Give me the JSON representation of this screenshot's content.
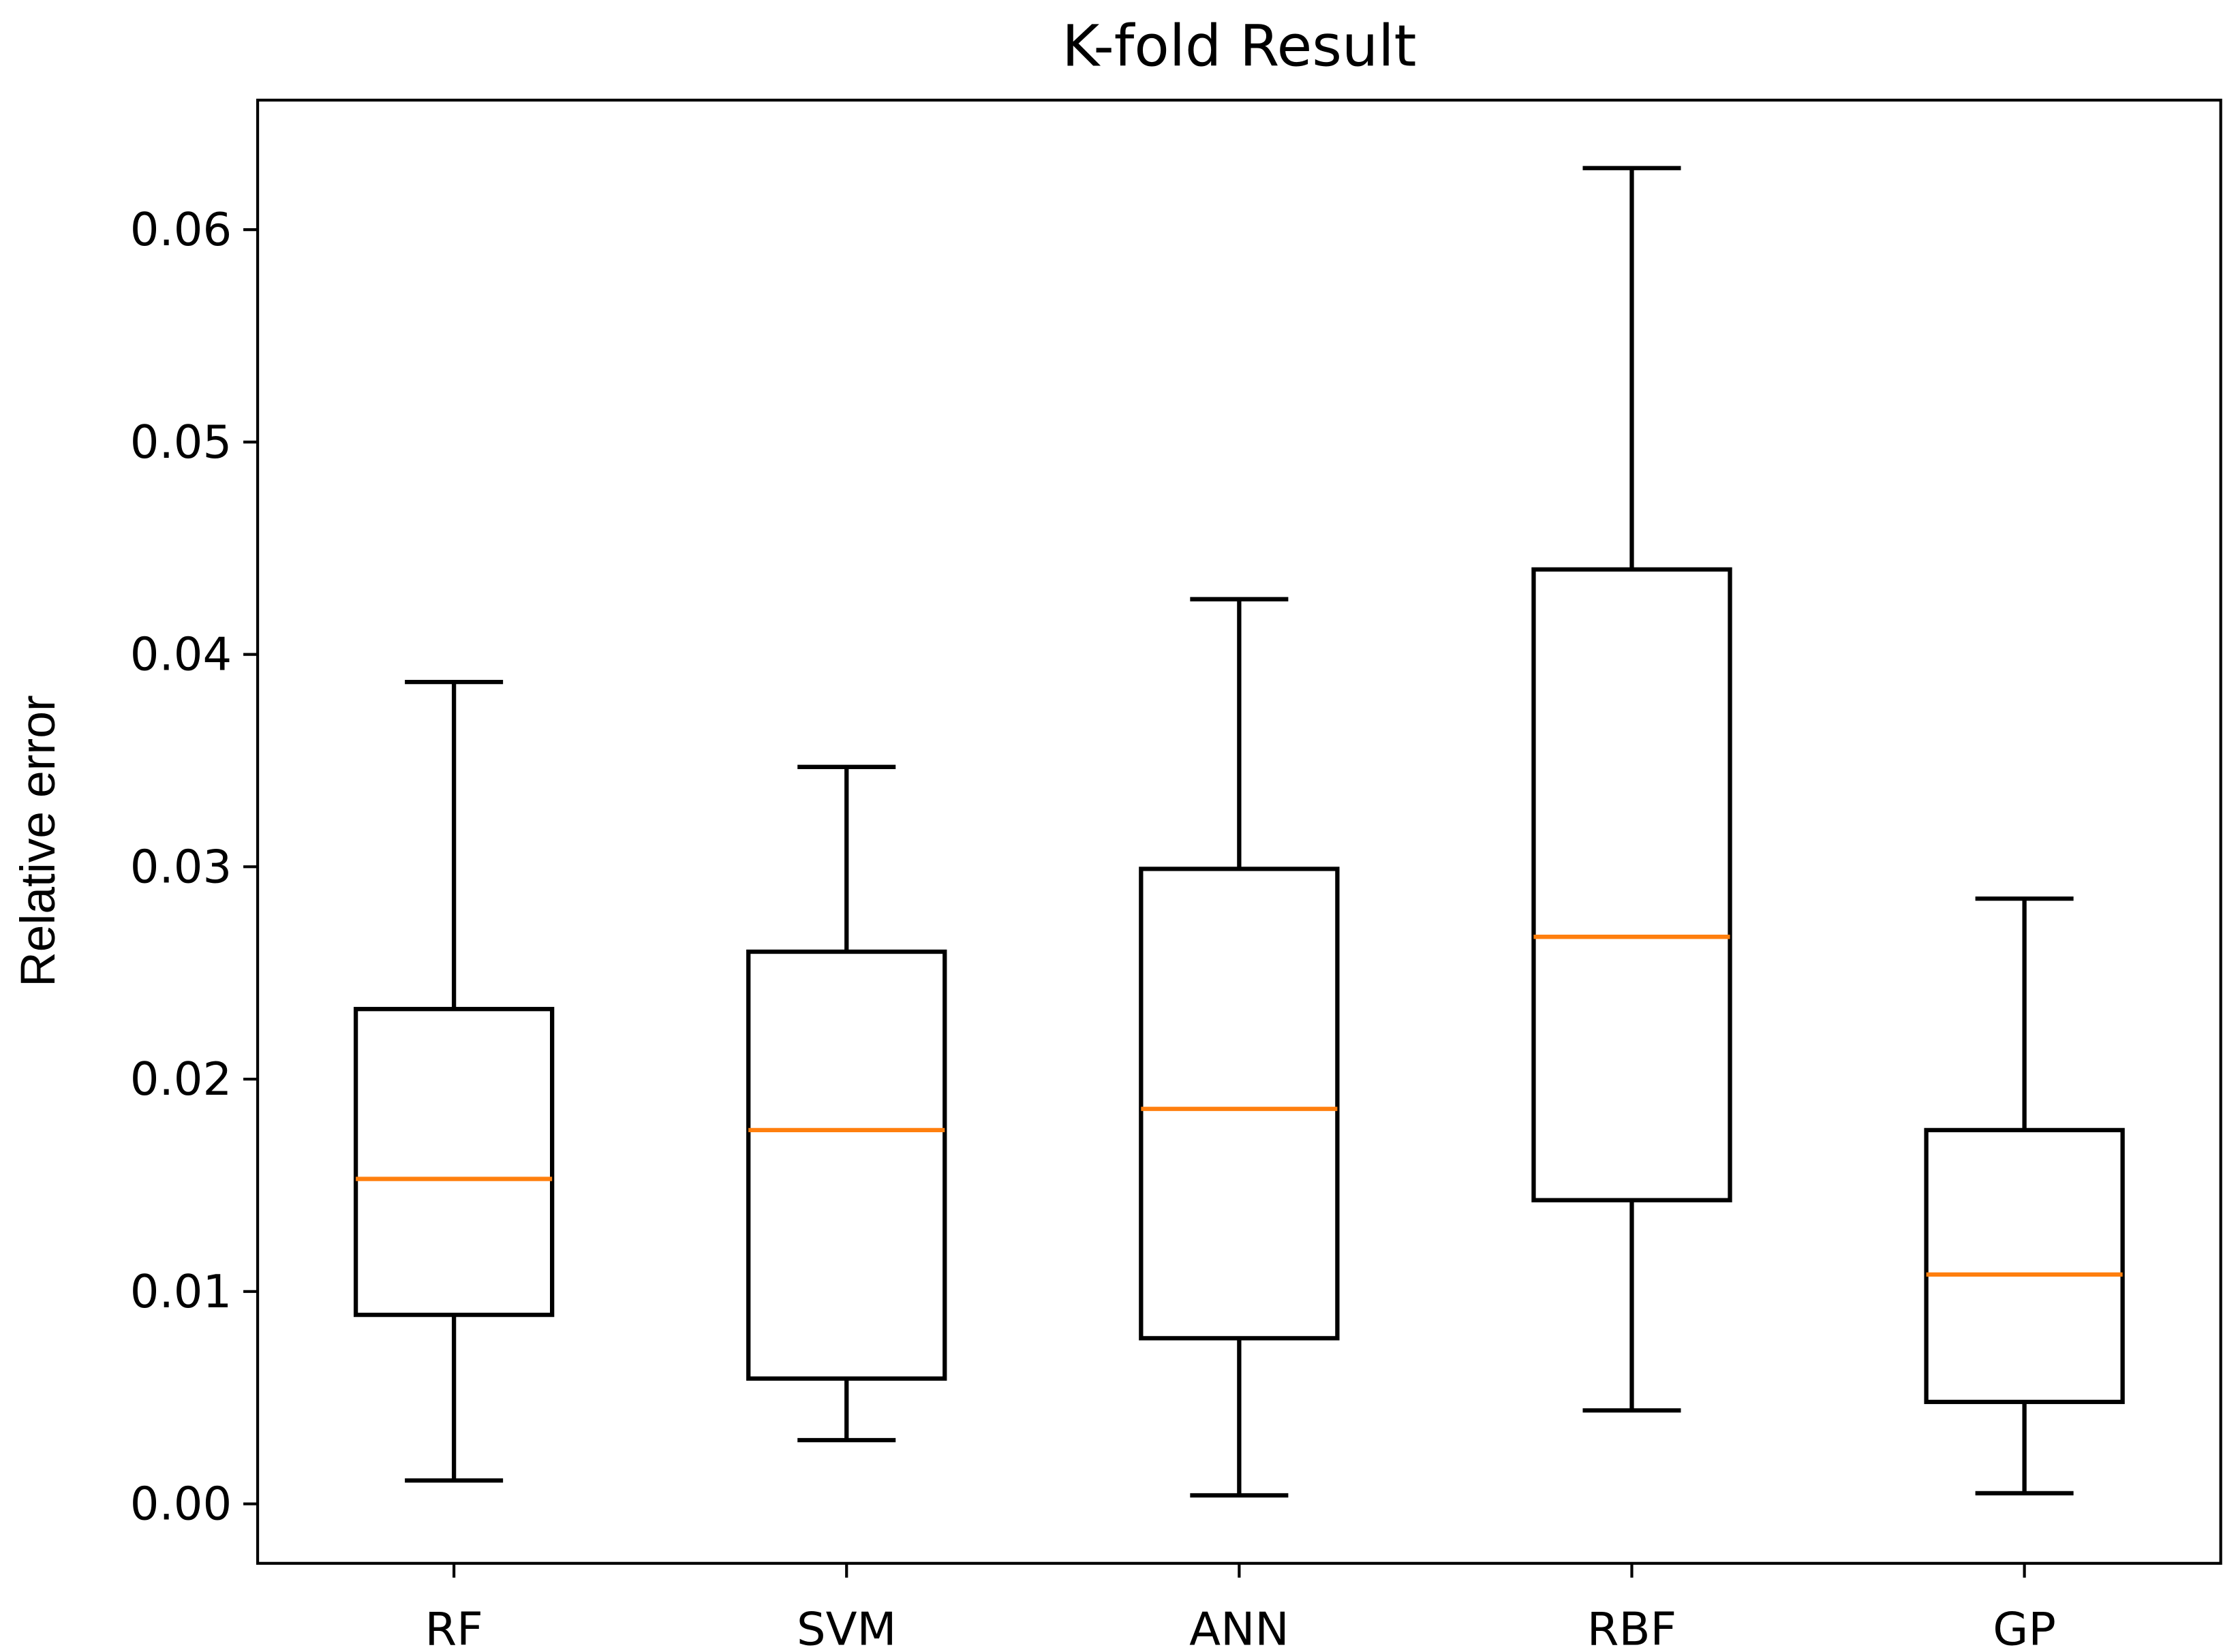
{
  "chart_data": {
    "type": "box",
    "title": "K-fold Result",
    "y_label": "Relative error",
    "categories": [
      "RF",
      "SVM",
      "ANN",
      "RBF",
      "GP"
    ],
    "boxes": [
      {
        "whislo": 0.0011,
        "q1": 0.0089,
        "med": 0.0153,
        "q3": 0.0233,
        "whishi": 0.0387
      },
      {
        "whislo": 0.003,
        "q1": 0.0059,
        "med": 0.0176,
        "q3": 0.026,
        "whishi": 0.0347
      },
      {
        "whislo": 0.0004,
        "q1": 0.0078,
        "med": 0.0186,
        "q3": 0.0299,
        "whishi": 0.0426
      },
      {
        "whislo": 0.0044,
        "q1": 0.0143,
        "med": 0.0267,
        "q3": 0.044,
        "whishi": 0.0629
      },
      {
        "whislo": 0.0005,
        "q1": 0.0048,
        "med": 0.0108,
        "q3": 0.0176,
        "whishi": 0.0285
      }
    ],
    "box_color": "#000000",
    "median_color": "#ff7f0e",
    "ylim": [
      -0.0028,
      0.0661
    ],
    "yticks": [
      {
        "value": 0,
        "label": "0.00"
      },
      0.01,
      0.02,
      0.03,
      0.04,
      0.05,
      0.06
    ]
  }
}
